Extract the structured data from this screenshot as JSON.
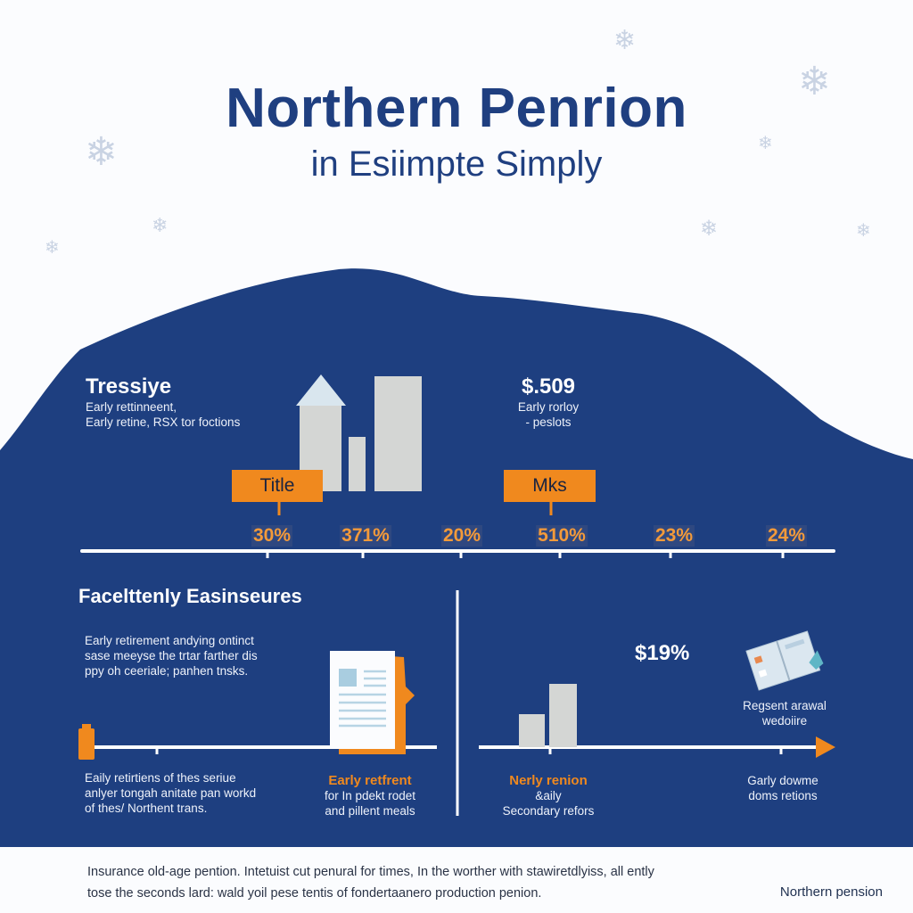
{
  "header": {
    "title": "Northern Penrion",
    "subtitle": "in Esiimpte Simply"
  },
  "colors": {
    "primary": "#1e3f80",
    "accent": "#f0891e",
    "bars": "#d4d6d4",
    "background": "#fbfcfe"
  },
  "top_left": {
    "heading": "Tressiye",
    "lines": [
      "Early rettinneent,",
      "Early retine, RSX tor foctions"
    ]
  },
  "top_right": {
    "value": "$.509",
    "lines": [
      "Early rorloy",
      "- peslots"
    ]
  },
  "tags": [
    "Title",
    "Mks"
  ],
  "percentages": [
    "30%",
    "371%",
    "20%",
    "510%",
    "23%",
    "24%"
  ],
  "section2": {
    "heading": "Facelttenly Easinseures",
    "intro": [
      "Early retirement andying ontinct",
      "sase meeyse the trtar farther dis",
      "ppy oh ceeriale; panhen tnsks."
    ],
    "bottom_left": [
      "Eaily retirtiens of thes seriue",
      "anlyer tongah anitate pan workd",
      "of thes/ Northent trans."
    ],
    "doc_label": {
      "title": "Early retfrent",
      "lines": [
        "for In pdekt rodet",
        "and pillent meals"
      ]
    }
  },
  "section3": {
    "value": "$19%",
    "icon_label": [
      "Regsent arawal",
      "wedoiire"
    ],
    "bars_label": {
      "title": "Nerly renion",
      "lines": [
        "&aily",
        "Secondary refors"
      ]
    },
    "right_label": [
      "Garly dowme",
      "doms retions"
    ]
  },
  "footer": {
    "text": [
      "Insurance old-age pention. Intetuist cut penural for times, In the worther with stawiretdlyiss, all ently",
      "tose the seconds lard: wald yoil pese tentis of fondertaanero production penion."
    ],
    "brand": "Northern pension"
  },
  "icons": [
    "snowflake-icon",
    "house-icon",
    "document-icon",
    "book-icon",
    "arrow-right-icon"
  ]
}
